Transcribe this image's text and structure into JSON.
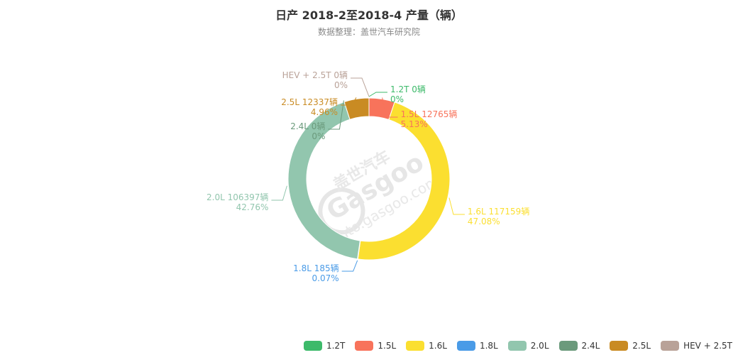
{
  "chart_data": {
    "type": "pie",
    "title": "日产 2018-2至2018-4 产量（辆）",
    "subtitle": "数据整理：盖世汽车研究院",
    "unit": "辆",
    "watermark": [
      "盖世汽车",
      "Gasgoo",
      "auto.gasgoo.com"
    ],
    "slices": [
      {
        "name": "1.2T",
        "value": 0,
        "percent": "0%",
        "color": "#3dba6a"
      },
      {
        "name": "1.5L",
        "value": 12765,
        "percent": "5.13%",
        "color": "#f8735b"
      },
      {
        "name": "1.6L",
        "value": 117159,
        "percent": "47.08%",
        "color": "#fbdf30"
      },
      {
        "name": "1.8L",
        "value": 185,
        "percent": "0.07%",
        "color": "#4a9be7"
      },
      {
        "name": "2.0L",
        "value": 106397,
        "percent": "42.76%",
        "color": "#92c6ae"
      },
      {
        "name": "2.4L",
        "value": 0,
        "percent": "0%",
        "color": "#6b9a7c"
      },
      {
        "name": "2.5L",
        "value": 12337,
        "percent": "4.96%",
        "color": "#c98b23"
      },
      {
        "name": "HEV + 2.5T",
        "value": 0,
        "percent": "0%",
        "color": "#b9a298"
      }
    ]
  }
}
